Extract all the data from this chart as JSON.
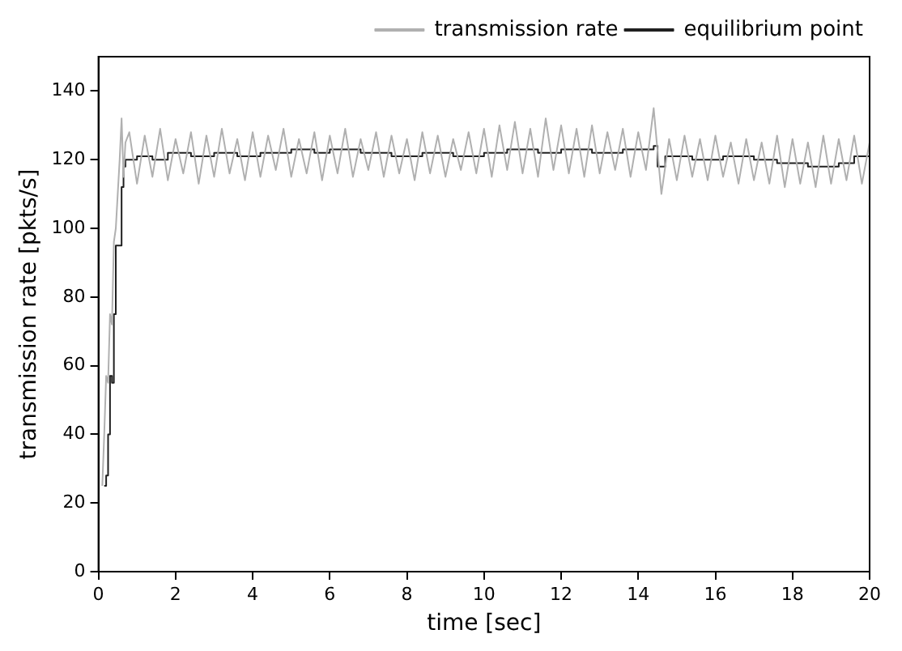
{
  "chart_data": {
    "type": "line",
    "xlabel": "time [sec]",
    "ylabel": "transmission rate [pkts/s]",
    "xlim": [
      0,
      20
    ],
    "ylim": [
      0,
      150
    ],
    "xticks": [
      0,
      2,
      4,
      6,
      8,
      10,
      12,
      14,
      16,
      18,
      20
    ],
    "yticks": [
      0,
      20,
      40,
      60,
      80,
      100,
      120,
      140
    ],
    "grid": false,
    "legend": "top right",
    "marker": "none",
    "series": [
      {
        "name": "transmission rate",
        "color": "#b0b0b0",
        "x": [
          0.1,
          0.15,
          0.2,
          0.25,
          0.3,
          0.35,
          0.4,
          0.45,
          0.5,
          0.55,
          0.6,
          0.65,
          0.7,
          0.8,
          1.0,
          1.2,
          1.4,
          1.6,
          1.8,
          2.0,
          2.2,
          2.4,
          2.6,
          2.8,
          3.0,
          3.2,
          3.4,
          3.6,
          3.8,
          4.0,
          4.2,
          4.4,
          4.6,
          4.8,
          5.0,
          5.2,
          5.4,
          5.6,
          5.8,
          6.0,
          6.2,
          6.4,
          6.6,
          6.8,
          7.0,
          7.2,
          7.4,
          7.6,
          7.8,
          8.0,
          8.2,
          8.4,
          8.6,
          8.8,
          9.0,
          9.2,
          9.4,
          9.6,
          9.8,
          10.0,
          10.2,
          10.4,
          10.6,
          10.8,
          11.0,
          11.2,
          11.4,
          11.6,
          11.8,
          12.0,
          12.2,
          12.4,
          12.6,
          12.8,
          13.0,
          13.2,
          13.4,
          13.6,
          13.8,
          14.0,
          14.2,
          14.4,
          14.6,
          14.8,
          15.0,
          15.2,
          15.4,
          15.6,
          15.8,
          16.0,
          16.2,
          16.4,
          16.6,
          16.8,
          17.0,
          17.2,
          17.4,
          17.6,
          17.8,
          18.0,
          18.2,
          18.4,
          18.6,
          18.8,
          19.0,
          19.2,
          19.4,
          19.6,
          19.8,
          20.0
        ],
        "values": [
          25,
          40,
          57,
          55,
          75,
          72,
          96,
          100,
          110,
          120,
          132,
          115,
          125,
          128,
          113,
          127,
          115,
          129,
          114,
          126,
          116,
          128,
          113,
          127,
          115,
          129,
          116,
          126,
          114,
          128,
          115,
          127,
          117,
          129,
          115,
          126,
          116,
          128,
          114,
          127,
          116,
          129,
          115,
          126,
          117,
          128,
          115,
          127,
          116,
          126,
          114,
          128,
          116,
          127,
          115,
          126,
          117,
          128,
          116,
          129,
          115,
          130,
          117,
          131,
          116,
          129,
          115,
          132,
          117,
          130,
          116,
          129,
          115,
          130,
          116,
          128,
          117,
          129,
          115,
          128,
          117,
          135,
          110,
          126,
          114,
          127,
          115,
          126,
          114,
          127,
          115,
          125,
          113,
          126,
          114,
          125,
          113,
          127,
          112,
          126,
          113,
          125,
          112,
          127,
          113,
          126,
          114,
          127,
          113,
          125
        ]
      },
      {
        "name": "equilibrium point",
        "type": "step",
        "color": "#202020",
        "x": [
          0.15,
          0.2,
          0.25,
          0.3,
          0.35,
          0.4,
          0.45,
          0.6,
          0.65,
          0.7,
          1.0,
          1.4,
          1.8,
          2.4,
          3.0,
          3.6,
          4.2,
          5.0,
          5.6,
          6.0,
          6.8,
          7.6,
          8.4,
          9.2,
          10.0,
          10.6,
          11.4,
          12.0,
          12.8,
          13.6,
          14.4,
          14.5,
          14.7,
          15.4,
          16.2,
          17.0,
          17.6,
          18.4,
          19.2,
          19.6,
          20.0
        ],
        "values": [
          25,
          28,
          40,
          57,
          55,
          75,
          95,
          112,
          118,
          120,
          121,
          120,
          122,
          121,
          122,
          121,
          122,
          123,
          122,
          123,
          122,
          121,
          122,
          121,
          122,
          123,
          122,
          123,
          122,
          123,
          124,
          118,
          121,
          120,
          121,
          120,
          119,
          118,
          119,
          121,
          121
        ]
      }
    ]
  }
}
